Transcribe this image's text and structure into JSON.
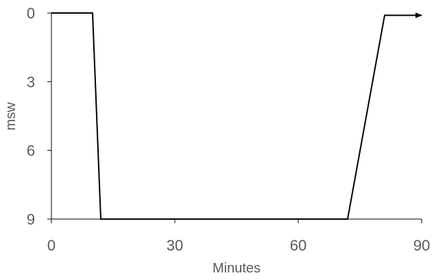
{
  "chart_data": {
    "type": "line",
    "title": "",
    "xlabel": "Minutes",
    "ylabel": "msw",
    "xlim": [
      0,
      90
    ],
    "ylim": [
      0,
      9
    ],
    "y_inverted": true,
    "x_ticks": [
      0,
      30,
      60,
      90
    ],
    "y_ticks": [
      0,
      3,
      6,
      9
    ],
    "grid": false,
    "end_arrow": true,
    "series": [
      {
        "x": [
          0,
          10,
          12,
          72,
          81,
          90
        ],
        "y": [
          0,
          0,
          9,
          9,
          0.1,
          0.1
        ]
      }
    ],
    "colors": {
      "line": "#000000",
      "axis": "#000000",
      "text": "#595959"
    }
  }
}
